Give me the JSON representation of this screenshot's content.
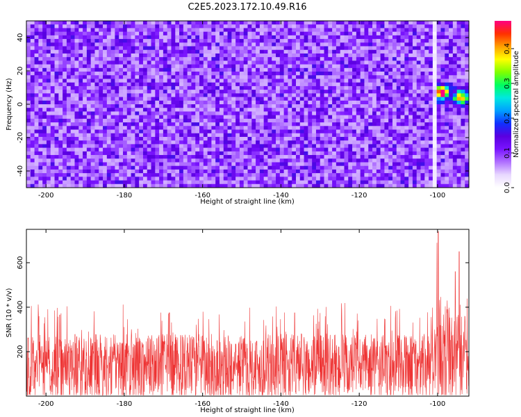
{
  "figure": {
    "title": "C2E5.2023.172.10.49.R16"
  },
  "chart_data": [
    {
      "type": "heatmap",
      "xlabel": "Height of straight line (km)",
      "ylabel": "Frequency (Hz)",
      "xlim": [
        -205,
        -92
      ],
      "ylim": [
        -50,
        50
      ],
      "xticks": [
        -200,
        -180,
        -160,
        -140,
        -120,
        -100
      ],
      "yticks": [
        -40,
        -20,
        0,
        20,
        40
      ],
      "colorbar": {
        "label": "Normalized spectral amplitude",
        "range": [
          0.0,
          0.48
        ],
        "ticks": [
          0.0,
          0.1,
          0.2,
          0.3,
          0.4
        ],
        "colormap": [
          "#ffffff",
          "#e8d8ff",
          "#b070ff",
          "#7a14ff",
          "#5a00e0",
          "#1030ff",
          "#00a0ff",
          "#00e8e0",
          "#00ff60",
          "#80ff00",
          "#ffff00",
          "#ffa000",
          "#ff3000",
          "#ff0080"
        ]
      },
      "description_values": {
        "background_level": 0.05,
        "hotspot": {
          "x": -99,
          "y": 7,
          "value": 0.45
        },
        "secondary_hotspot": {
          "x": -94,
          "y": 4,
          "value": 0.3
        }
      },
      "grid": false
    },
    {
      "type": "line",
      "xlabel": "Height of straight line (km)",
      "ylabel": "SNR (10 * v/v)",
      "xlim": [
        -205,
        -92
      ],
      "ylim": [
        0,
        750
      ],
      "xticks": [
        -200,
        -180,
        -160,
        -140,
        -120,
        -100
      ],
      "yticks": [
        200,
        400,
        600
      ],
      "series": [
        {
          "color": "#ee3333",
          "baseline_mean": 130,
          "noise_peak_typical": 330,
          "peaks": [
            {
              "x": -99.8,
              "y": 740
            },
            {
              "x": -100.2,
              "y": 690
            },
            {
              "x": -94.5,
              "y": 650
            },
            {
              "x": -95.5,
              "y": 560
            },
            {
              "x": -97.5,
              "y": 430
            },
            {
              "x": -196.5,
              "y": 365
            },
            {
              "x": -168.5,
              "y": 375
            },
            {
              "x": -136.5,
              "y": 375
            }
          ]
        }
      ],
      "grid": false
    }
  ]
}
